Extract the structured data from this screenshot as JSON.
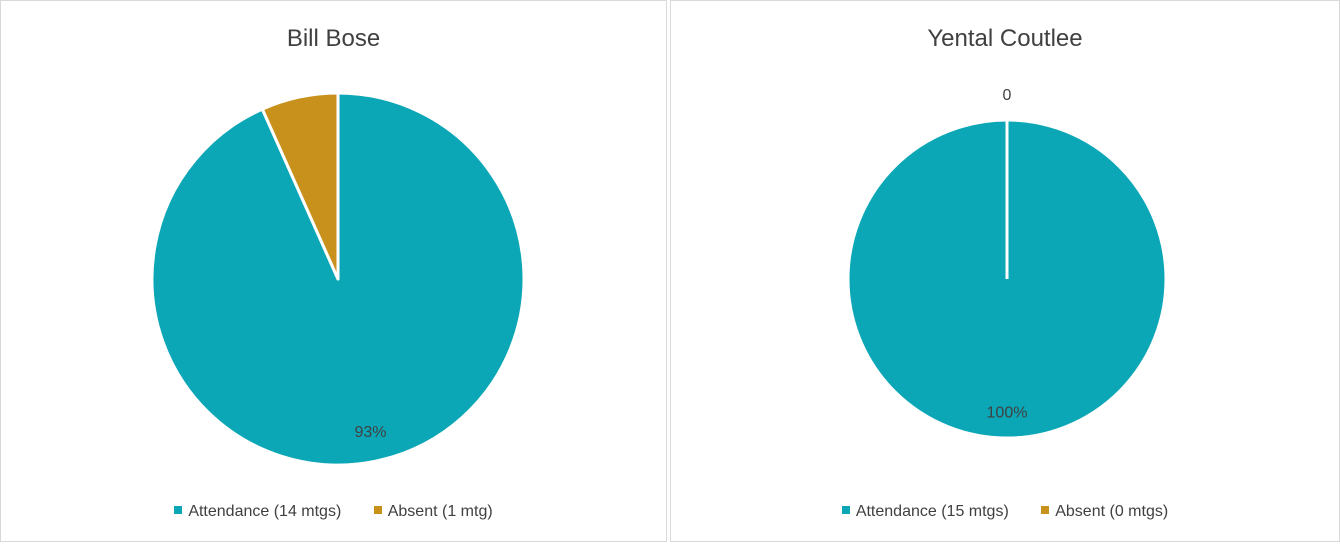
{
  "chart_data": [
    {
      "type": "pie",
      "title": "Bill Bose",
      "categories": [
        "Attendance (14 mtgs)",
        "Absent (1 mtg)"
      ],
      "values": [
        14,
        1
      ],
      "data_labels": [
        "93%",
        ""
      ],
      "colors": [
        "#0ba7b6",
        "#c8911c"
      ],
      "legend": "bottom"
    },
    {
      "type": "pie",
      "title": "Yental Coutlee",
      "categories": [
        "Attendance (15 mtgs)",
        "Absent (0 mtgs)"
      ],
      "values": [
        15,
        0
      ],
      "data_labels": [
        "100%",
        "0"
      ],
      "colors": [
        "#0ba7b6",
        "#c8911c"
      ],
      "legend": "bottom"
    }
  ]
}
